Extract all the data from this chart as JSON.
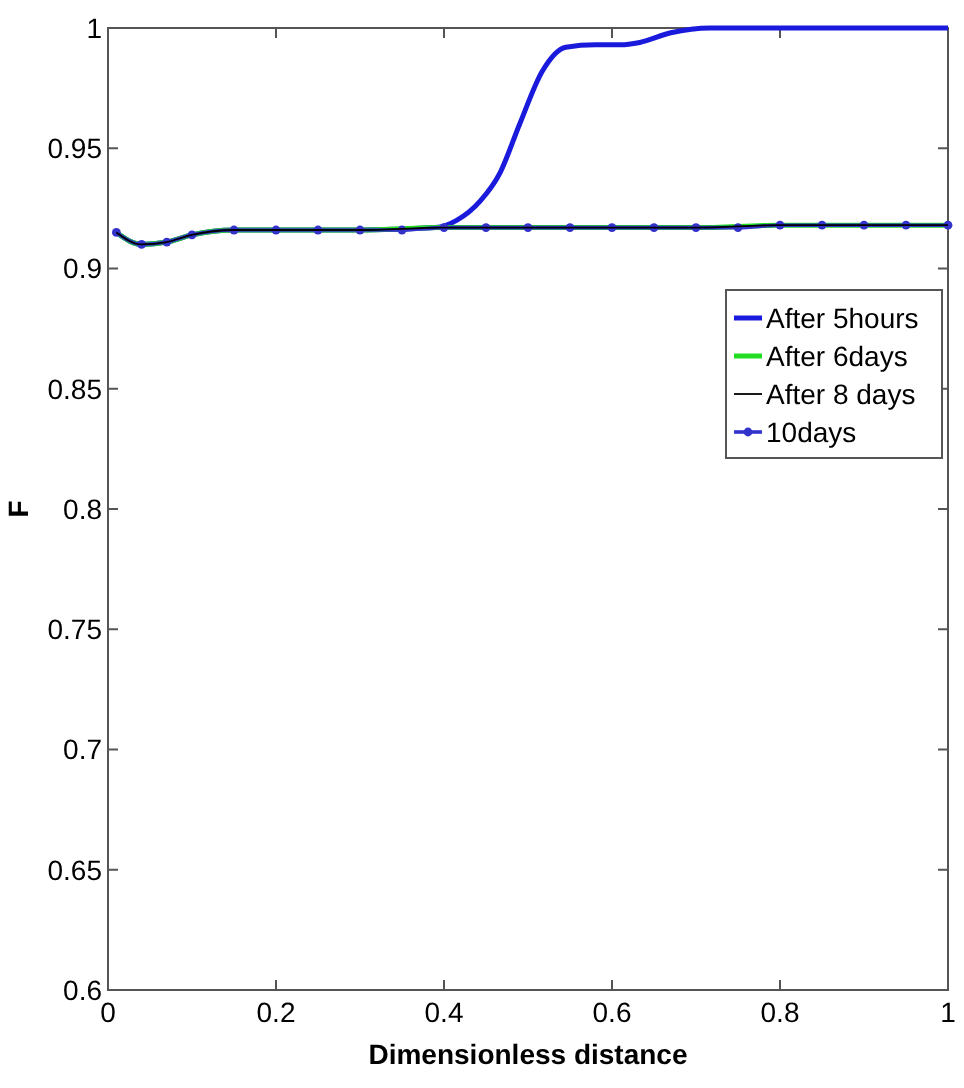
{
  "chart_data": {
    "type": "line",
    "xlabel": "Dimensionless distance",
    "ylabel": "F",
    "xlim": [
      0,
      1
    ],
    "ylim": [
      0.6,
      1
    ],
    "xticks": [
      0,
      0.2,
      0.4,
      0.6,
      0.8,
      1
    ],
    "yticks": [
      0.6,
      0.65,
      0.7,
      0.75,
      0.8,
      0.85,
      0.9,
      0.95,
      1
    ],
    "grid": false,
    "legend": "right",
    "series": [
      {
        "name": "After 5hours",
        "color": "#1a1adc",
        "x": [
          0.01,
          0.04,
          0.07,
          0.1,
          0.15,
          0.2,
          0.3,
          0.39,
          0.415,
          0.443,
          0.467,
          0.49,
          0.517,
          0.545,
          0.58,
          0.61,
          0.633,
          0.67,
          0.717,
          0.8,
          0.9,
          1
        ],
        "values": [
          0.915,
          0.91,
          0.911,
          0.914,
          0.916,
          0.916,
          0.916,
          0.917,
          0.92,
          0.928,
          0.94,
          0.96,
          0.982,
          0.992,
          0.993,
          0.993,
          0.994,
          0.998,
          1,
          1,
          1,
          1
        ]
      },
      {
        "name": "After 6days",
        "color": "#22dd22",
        "x": [
          0.01,
          0.04,
          0.07,
          0.1,
          0.15,
          0.2,
          0.3,
          0.4,
          0.5,
          0.6,
          0.7,
          0.8,
          0.9,
          1
        ],
        "values": [
          0.915,
          0.91,
          0.911,
          0.914,
          0.916,
          0.916,
          0.916,
          0.917,
          0.917,
          0.917,
          0.917,
          0.918,
          0.918,
          0.918
        ]
      },
      {
        "name": "After 8 days",
        "color": "#000000",
        "x": [
          0.01,
          0.04,
          0.07,
          0.1,
          0.15,
          0.2,
          0.3,
          0.4,
          0.5,
          0.6,
          0.7,
          0.8,
          0.9,
          1
        ],
        "values": [
          0.915,
          0.91,
          0.911,
          0.914,
          0.916,
          0.916,
          0.916,
          0.917,
          0.917,
          0.917,
          0.917,
          0.918,
          0.918,
          0.918
        ]
      },
      {
        "name": "10days",
        "color": "#3333cc",
        "marker": "circle",
        "x": [
          0.01,
          0.04,
          0.07,
          0.1,
          0.15,
          0.2,
          0.25,
          0.3,
          0.35,
          0.4,
          0.45,
          0.5,
          0.55,
          0.6,
          0.65,
          0.7,
          0.75,
          0.8,
          0.85,
          0.9,
          0.95,
          1
        ],
        "values": [
          0.915,
          0.91,
          0.911,
          0.914,
          0.916,
          0.916,
          0.916,
          0.916,
          0.916,
          0.917,
          0.917,
          0.917,
          0.917,
          0.917,
          0.917,
          0.917,
          0.917,
          0.918,
          0.918,
          0.918,
          0.918,
          0.918
        ]
      }
    ]
  }
}
